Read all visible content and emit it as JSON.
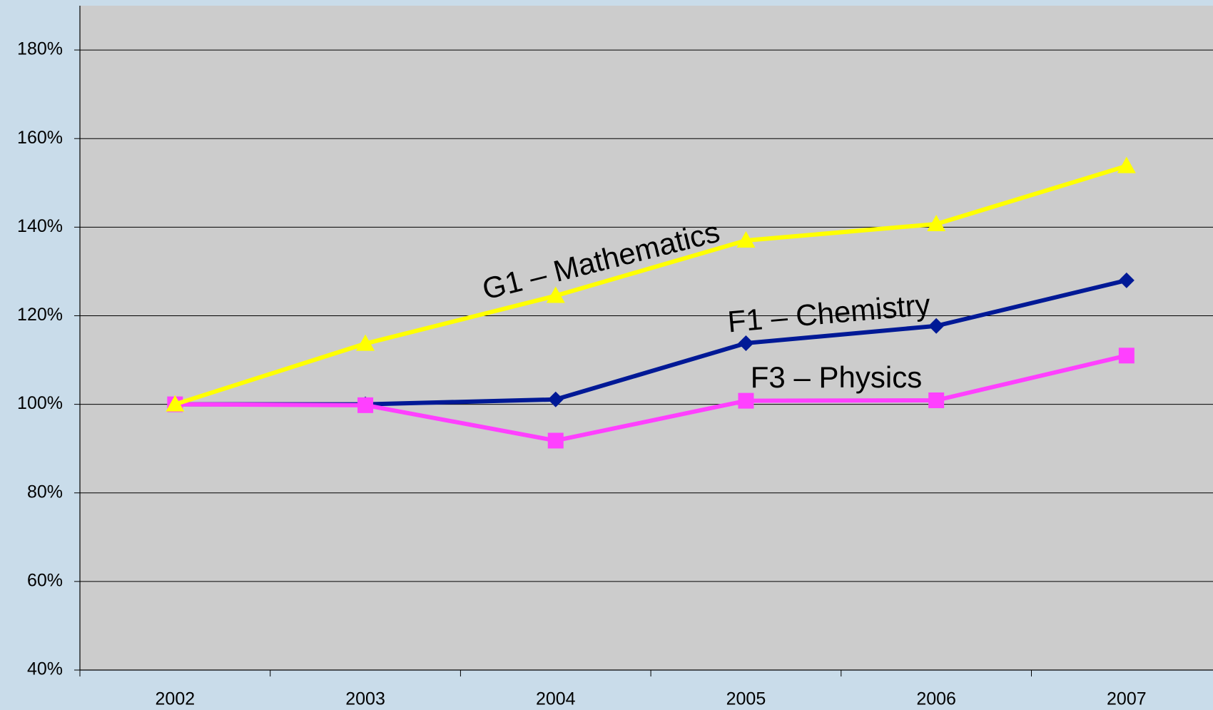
{
  "chart_data": {
    "type": "line",
    "categories": [
      "2002",
      "2003",
      "2004",
      "2005",
      "2006",
      "2007"
    ],
    "series": [
      {
        "name": "F1 – Chemistry",
        "color": "#001996",
        "marker": "diamond",
        "values": [
          100,
          100,
          101.1,
          113.8,
          117.7,
          128
        ]
      },
      {
        "name": "F3 – Physics",
        "color": "#ff40ff",
        "marker": "square",
        "values": [
          100,
          99.8,
          91.8,
          100.8,
          100.9,
          111
        ]
      },
      {
        "name": "G1 – Mathematics",
        "color": "#ffff00",
        "marker": "triangle",
        "values": [
          100,
          113.7,
          124.5,
          137,
          140.7,
          153.8
        ]
      }
    ],
    "ylim": [
      40,
      190
    ],
    "yticks": [
      {
        "value": 40,
        "label": "40%"
      },
      {
        "value": 60,
        "label": "60%"
      },
      {
        "value": 80,
        "label": "80%"
      },
      {
        "value": 100,
        "label": "100%"
      },
      {
        "value": 120,
        "label": "120%"
      },
      {
        "value": 140,
        "label": "140%"
      },
      {
        "value": 160,
        "label": "160%"
      },
      {
        "value": 180,
        "label": "180%"
      }
    ],
    "grid": true,
    "plot_background": "#cccccc"
  }
}
